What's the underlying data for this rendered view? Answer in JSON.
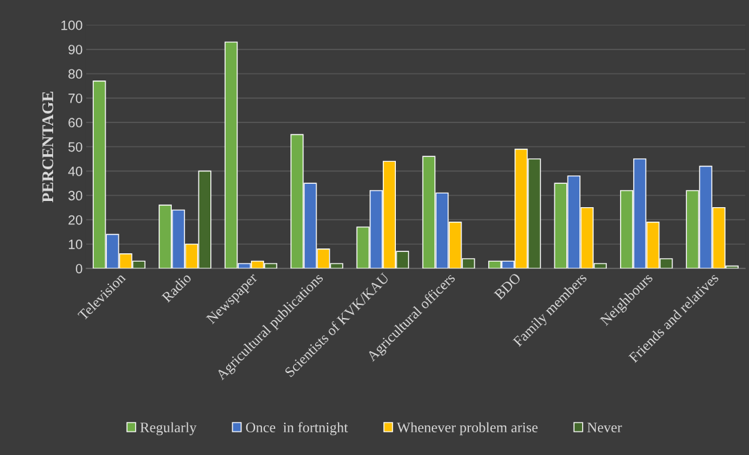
{
  "chart_data": {
    "type": "bar",
    "ylabel": "PERCENTAGE",
    "categories": [
      "Television",
      "Radio",
      "Newspaper",
      "Agricultural publications",
      "Scientists of KVK/KAU",
      "Agricultural officers",
      "BDO",
      "Family members",
      "Neighbours",
      "Friends and relatives"
    ],
    "series": [
      {
        "name": "Regularly",
        "color": "#70ad47",
        "values": [
          77,
          26,
          93,
          55,
          17,
          46,
          3,
          35,
          32,
          32
        ]
      },
      {
        "name": "Once  in fortnight",
        "color": "#4472c4",
        "values": [
          14,
          24,
          2,
          35,
          32,
          31,
          3,
          38,
          45,
          42
        ]
      },
      {
        "name": "Whenever problem arise",
        "color": "#ffc000",
        "values": [
          6,
          10,
          3,
          8,
          44,
          19,
          49,
          25,
          19,
          25
        ]
      },
      {
        "name": "Never",
        "color": "#43682b",
        "values": [
          3,
          40,
          2,
          2,
          7,
          4,
          45,
          2,
          4,
          1
        ]
      }
    ],
    "ylim": [
      0,
      100
    ],
    "yticks": [
      0,
      10,
      20,
      30,
      40,
      50,
      60,
      70,
      80,
      90,
      100
    ],
    "grid": "y",
    "legend": "bottom"
  }
}
